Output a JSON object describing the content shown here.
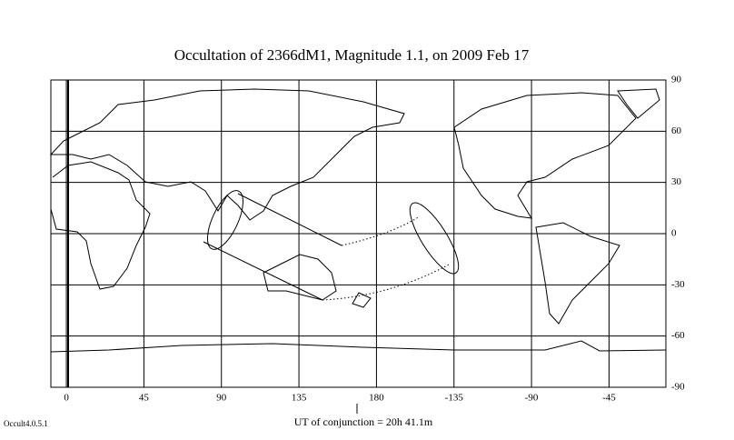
{
  "chart_data": {
    "type": "map",
    "title": "Occultation  of  2366dM1,      Magnitude 1.1,    on  2009 Feb 17",
    "xlim": [
      -9,
      348
    ],
    "ylim": [
      -90,
      90
    ],
    "xticks": [
      0,
      45,
      90,
      135,
      180,
      -135,
      -90,
      -45
    ],
    "yticks": [
      90,
      60,
      30,
      0,
      -30,
      -60,
      -90
    ],
    "footer": "UT of conjunction = 20h 41.1m",
    "version": "Occult4.0.5.1"
  }
}
